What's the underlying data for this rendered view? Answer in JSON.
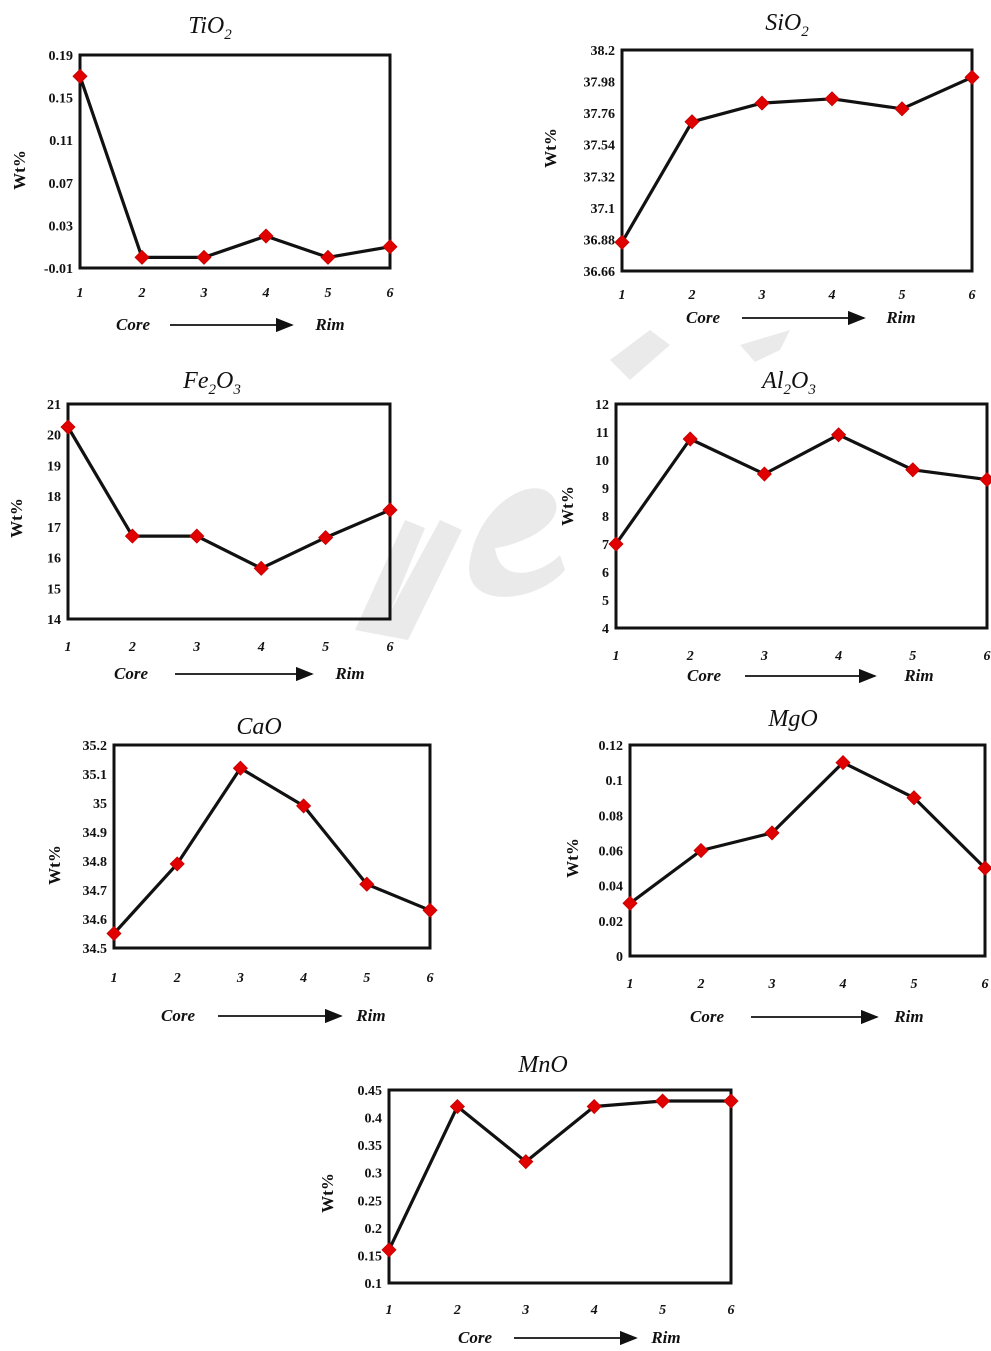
{
  "colors": {
    "line": "#111111",
    "marker": "#e00000",
    "watermark": "#d9d9d9"
  },
  "chart_data": [
    {
      "type": "line",
      "title": "TiO",
      "title_subscript": "2",
      "ylabel": "Wt%",
      "x": [
        "1",
        "2",
        "3",
        "4",
        "5",
        "6"
      ],
      "yticks": [
        "-0.01",
        "0.03",
        "0.07",
        "0.11",
        "0.15",
        "0.19"
      ],
      "ylim": [
        -0.01,
        0.19
      ],
      "values": [
        0.17,
        0.0,
        0.0,
        0.02,
        0.0,
        0.01
      ],
      "core_label": "Core",
      "rim_label": "Rim"
    },
    {
      "type": "line",
      "title": "SiO",
      "title_subscript": "2",
      "ylabel": "Wt%",
      "x": [
        "1",
        "2",
        "3",
        "4",
        "5",
        "6"
      ],
      "yticks": [
        "36.66",
        "36.88",
        "37.1",
        "37.32",
        "37.54",
        "37.76",
        "37.98",
        "38.2"
      ],
      "ylim": [
        36.66,
        38.2
      ],
      "values": [
        36.86,
        37.7,
        37.83,
        37.86,
        37.79,
        38.01
      ],
      "core_label": "Core",
      "rim_label": "Rim"
    },
    {
      "type": "line",
      "title": "Fe",
      "title_subscript": "2",
      "title_mid": "O",
      "title_subscript2": "3",
      "ylabel": "Wt%",
      "x": [
        "1",
        "2",
        "3",
        "4",
        "5",
        "6"
      ],
      "yticks": [
        "14",
        "15",
        "16",
        "17",
        "18",
        "19",
        "20",
        "21"
      ],
      "ylim": [
        14,
        21
      ],
      "values": [
        20.25,
        16.7,
        16.7,
        15.65,
        16.65,
        17.55
      ],
      "core_label": "Core",
      "rim_label": "Rim"
    },
    {
      "type": "line",
      "title": "Al",
      "title_subscript": "2",
      "title_mid": "O",
      "title_subscript2": "3",
      "ylabel": "Wt%",
      "x": [
        "1",
        "2",
        "3",
        "4",
        "5",
        "6"
      ],
      "yticks": [
        "4",
        "5",
        "6",
        "7",
        "8",
        "9",
        "10",
        "11",
        "12"
      ],
      "ylim": [
        4,
        12
      ],
      "values": [
        7.0,
        10.75,
        9.5,
        10.9,
        9.65,
        9.3
      ],
      "core_label": "Core",
      "rim_label": "Rim"
    },
    {
      "type": "line",
      "title": "CaO",
      "ylabel": "Wt%",
      "x": [
        "1",
        "2",
        "3",
        "4",
        "5",
        "6"
      ],
      "yticks": [
        "34.5",
        "34.6",
        "34.7",
        "34.8",
        "34.9",
        "35",
        "35.1",
        "35.2"
      ],
      "ylim": [
        34.5,
        35.2
      ],
      "values": [
        34.55,
        34.79,
        35.12,
        34.99,
        34.72,
        34.63
      ],
      "core_label": "Core",
      "rim_label": "Rim"
    },
    {
      "type": "line",
      "title": "MgO",
      "ylabel": "Wt%",
      "x": [
        "1",
        "2",
        "3",
        "4",
        "5",
        "6"
      ],
      "yticks": [
        "0",
        "0.02",
        "0.04",
        "0.06",
        "0.08",
        "0.1",
        "0.12"
      ],
      "ylim": [
        0,
        0.12
      ],
      "values": [
        0.03,
        0.06,
        0.07,
        0.11,
        0.09,
        0.05
      ],
      "core_label": "Core",
      "rim_label": "Rim"
    },
    {
      "type": "line",
      "title": "MnO",
      "ylabel": "Wt%",
      "x": [
        "1",
        "2",
        "3",
        "4",
        "5",
        "6"
      ],
      "yticks": [
        "0.1",
        "0.15",
        "0.2",
        "0.25",
        "0.3",
        "0.35",
        "0.4",
        "0.45"
      ],
      "ylim": [
        0.1,
        0.45
      ],
      "values": [
        0.16,
        0.42,
        0.32,
        0.42,
        0.43,
        0.43
      ],
      "core_label": "Core",
      "rim_label": "Rim"
    }
  ]
}
